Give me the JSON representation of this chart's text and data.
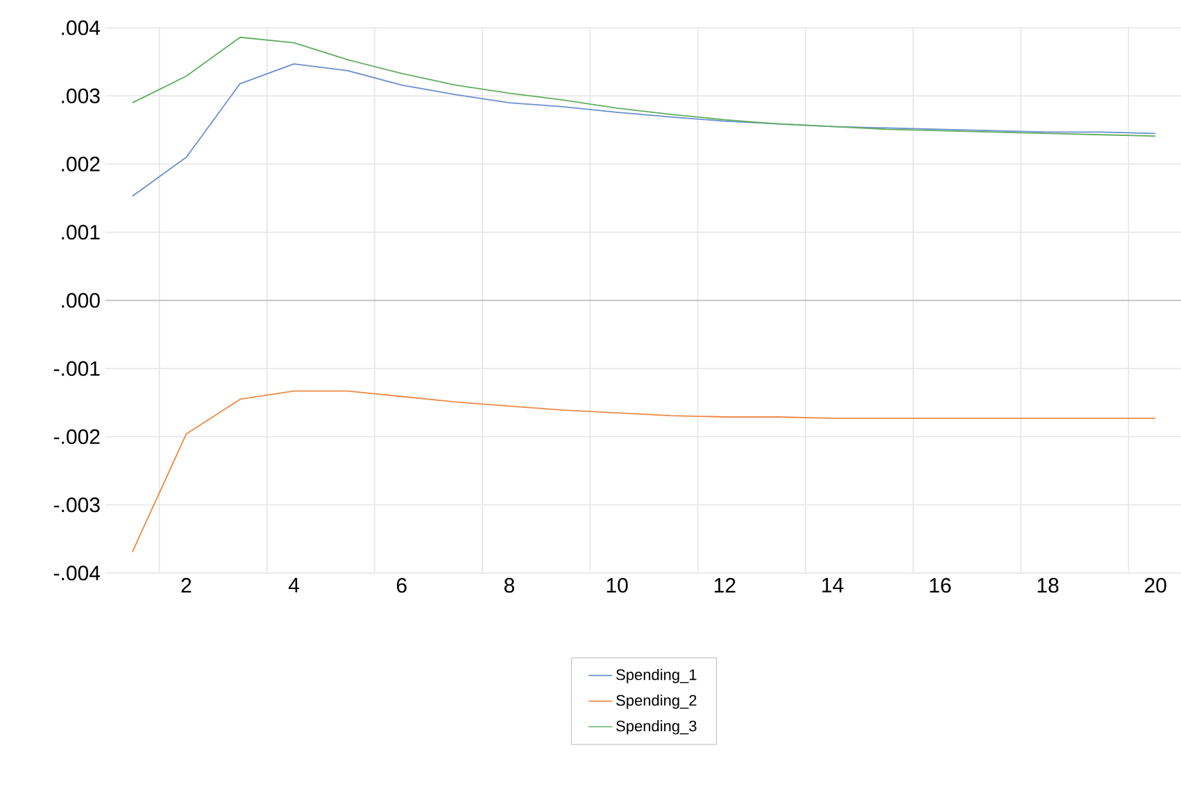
{
  "chart_data": {
    "type": "line",
    "categories": [
      null,
      "2",
      null,
      "4",
      null,
      "6",
      null,
      "8",
      null,
      "10",
      null,
      "12",
      null,
      "14",
      null,
      "16",
      null,
      "18",
      null,
      "20"
    ],
    "ylim": [
      -0.004,
      0.004
    ],
    "yticks": [
      {
        "value": -0.004,
        "label": "-.004"
      },
      {
        "value": -0.003,
        "label": "-.003"
      },
      {
        "value": -0.002,
        "label": "-.002"
      },
      {
        "value": -0.001,
        "label": "-.001"
      },
      {
        "value": 0,
        "label": ".000"
      },
      {
        "value": 0.001,
        "label": ".001"
      },
      {
        "value": 0.002,
        "label": ".002"
      },
      {
        "value": 0.003,
        "label": ".003"
      },
      {
        "value": 0.004,
        "label": ".004"
      }
    ],
    "grid": true,
    "legend": "bottom",
    "marker": "none",
    "line_style": "solid",
    "series": [
      {
        "name": "Spending_1",
        "color": "#6a8fd0",
        "values": [
          0.00153,
          0.0021,
          0.00318,
          0.00347,
          0.00337,
          0.00316,
          0.00302,
          0.0029,
          0.00284,
          0.00276,
          0.00269,
          0.00263,
          0.00259,
          0.00255,
          0.00253,
          0.00251,
          0.00249,
          0.00247,
          0.00247,
          0.00245
        ]
      },
      {
        "name": "Spending_2",
        "color": "#ed8a45",
        "values": [
          -0.00369,
          -0.00196,
          -0.00145,
          -0.00133,
          -0.00133,
          -0.00141,
          -0.00149,
          -0.00155,
          -0.00161,
          -0.00165,
          -0.00169,
          -0.00171,
          -0.00171,
          -0.00173,
          -0.00173,
          -0.00173,
          -0.00173,
          -0.00173,
          -0.00173,
          -0.00173
        ]
      },
      {
        "name": "Spending_3",
        "color": "#5fae5f",
        "values": [
          0.0029,
          0.00329,
          0.00386,
          0.00378,
          0.00353,
          0.00333,
          0.00316,
          0.00304,
          0.00294,
          0.00282,
          0.00273,
          0.00265,
          0.00259,
          0.00255,
          0.00251,
          0.00249,
          0.00247,
          0.00245,
          0.00243,
          0.00241
        ]
      }
    ]
  }
}
